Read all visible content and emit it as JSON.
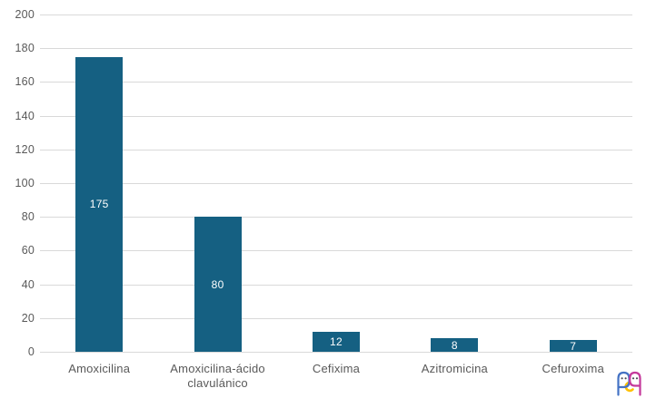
{
  "chart_data": {
    "type": "bar",
    "title": "",
    "xlabel": "",
    "ylabel": "",
    "categories": [
      "Amoxicilina",
      "Amoxicilina-ácido clavulánico",
      "Cefixima",
      "Azitromicina",
      "Cefuroxima"
    ],
    "values": [
      175,
      80,
      12,
      8,
      7
    ],
    "data_labels": [
      "175",
      "80",
      "12",
      "8",
      "7"
    ],
    "ylim": [
      0,
      200
    ],
    "yticks": [
      0,
      20,
      40,
      60,
      80,
      100,
      120,
      140,
      160,
      180,
      200
    ],
    "grid": true,
    "legend": false,
    "data_label_position": "inside-center",
    "colors": {
      "bar": "#156082",
      "gridline": "#D9D9D9",
      "axis_text": "#595959",
      "data_label": "#FFFFFF",
      "background": "#FFFFFF"
    }
  },
  "logo": {
    "name": "brand-logo",
    "colors": {
      "blue": "#4472C4",
      "yellow": "#FFC000",
      "magenta": "#C4399B",
      "eyes": "#4A4A55"
    }
  }
}
